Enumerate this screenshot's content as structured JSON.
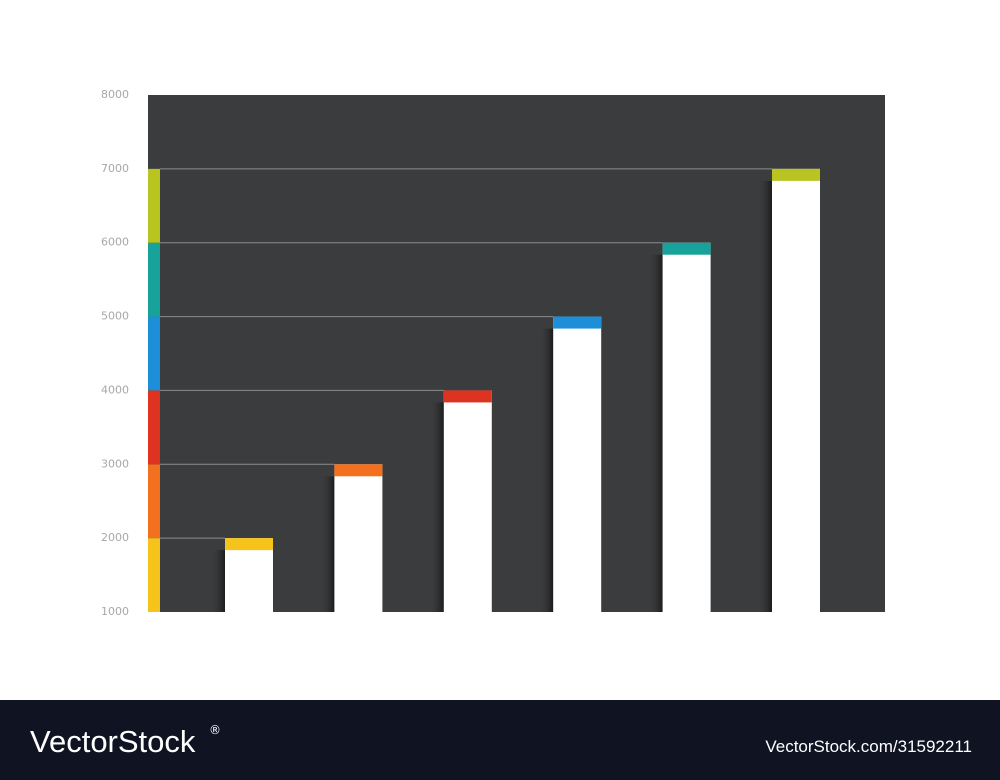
{
  "chart_data": {
    "type": "bar",
    "categories": [
      null,
      null,
      null,
      null,
      null,
      null
    ],
    "values": [
      2000,
      3000,
      4000,
      5000,
      6000,
      7000
    ],
    "colors": [
      "#f5c31a",
      "#f2701e",
      "#dd3320",
      "#1c8fd8",
      "#17a39b",
      "#b8c420"
    ],
    "ylim": [
      1000,
      8000
    ],
    "yticks": [
      1000,
      2000,
      3000,
      4000,
      5000,
      6000,
      7000,
      8000
    ],
    "grid": true
  },
  "watermark": {
    "brand": "VectorStock",
    "mark": "®",
    "id": "VectorStock.com/31592211"
  }
}
